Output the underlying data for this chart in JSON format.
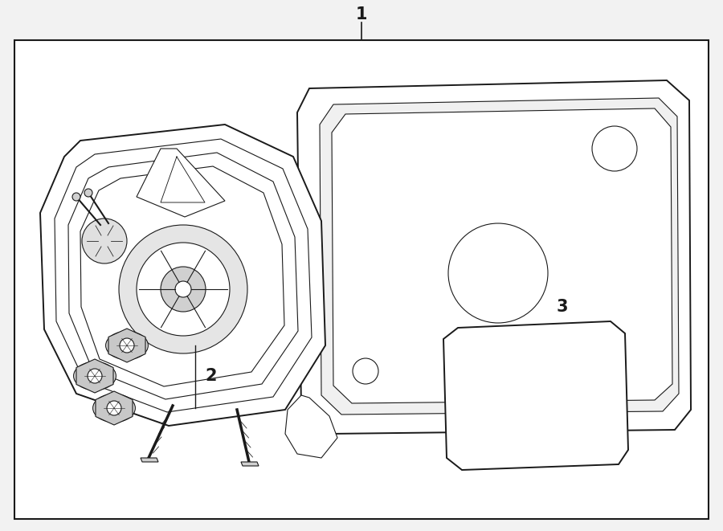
{
  "bg_color": "#f2f2f2",
  "box_bg": "#ffffff",
  "line_color": "#1a1a1a",
  "lw_main": 1.4,
  "lw_thin": 0.8,
  "lw_thick": 2.0,
  "fig_w": 9.0,
  "fig_h": 6.61,
  "dpi": 100,
  "label1": "1",
  "label2": "2",
  "label3": "3"
}
